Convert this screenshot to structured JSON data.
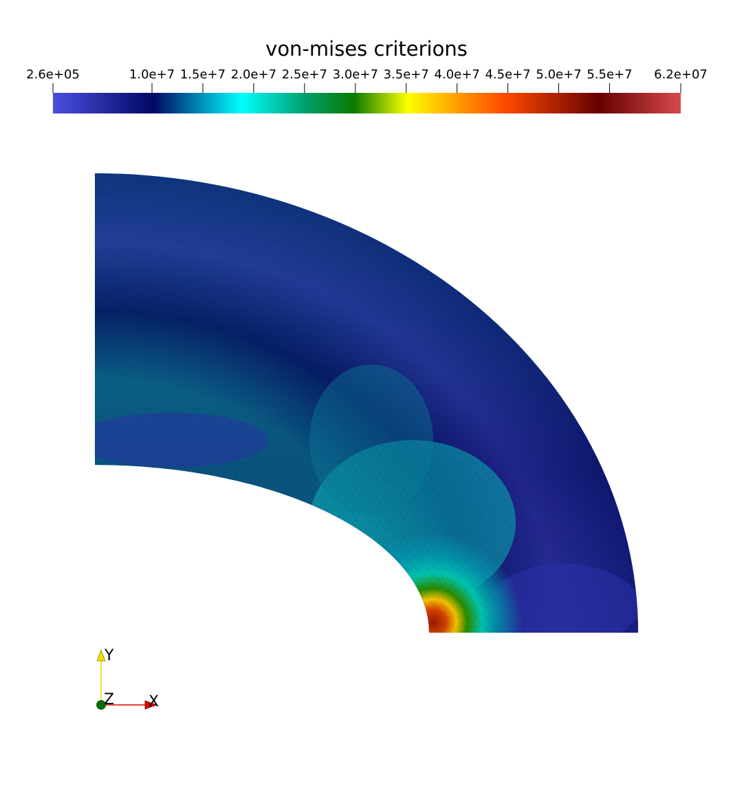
{
  "colorbar": {
    "title": "von-mises criterions",
    "min_label": "2.6e+05",
    "max_label": "6.2e+07",
    "ticks": [
      {
        "value": 260000,
        "label": "2.6e+05"
      },
      {
        "value": 10000000,
        "label": "1.0e+7"
      },
      {
        "value": 15000000,
        "label": "1.5e+7"
      },
      {
        "value": 20000000,
        "label": "2.0e+7"
      },
      {
        "value": 25000000,
        "label": "2.5e+7"
      },
      {
        "value": 30000000,
        "label": "3.0e+7"
      },
      {
        "value": 35000000,
        "label": "3.5e+7"
      },
      {
        "value": 40000000,
        "label": "4.0e+7"
      },
      {
        "value": 45000000,
        "label": "4.5e+7"
      },
      {
        "value": 50000000,
        "label": "5.0e+7"
      },
      {
        "value": 55000000,
        "label": "5.5e+7"
      },
      {
        "value": 62000000,
        "label": "6.2e+07"
      }
    ],
    "range": [
      260000,
      62000000
    ],
    "colormap": [
      "#4a4fe0",
      "#010763",
      "#00ffff",
      "#00a070",
      "#0a7a00",
      "#ffff00",
      "#ff8a00",
      "#ff4a00",
      "#650000",
      "#d84a4a"
    ]
  },
  "orientation_axes": {
    "x_label": "X",
    "y_label": "Y",
    "z_label": "Z",
    "x_color": "#e00000",
    "y_color": "#e8e000",
    "z_color": "#006400"
  }
}
